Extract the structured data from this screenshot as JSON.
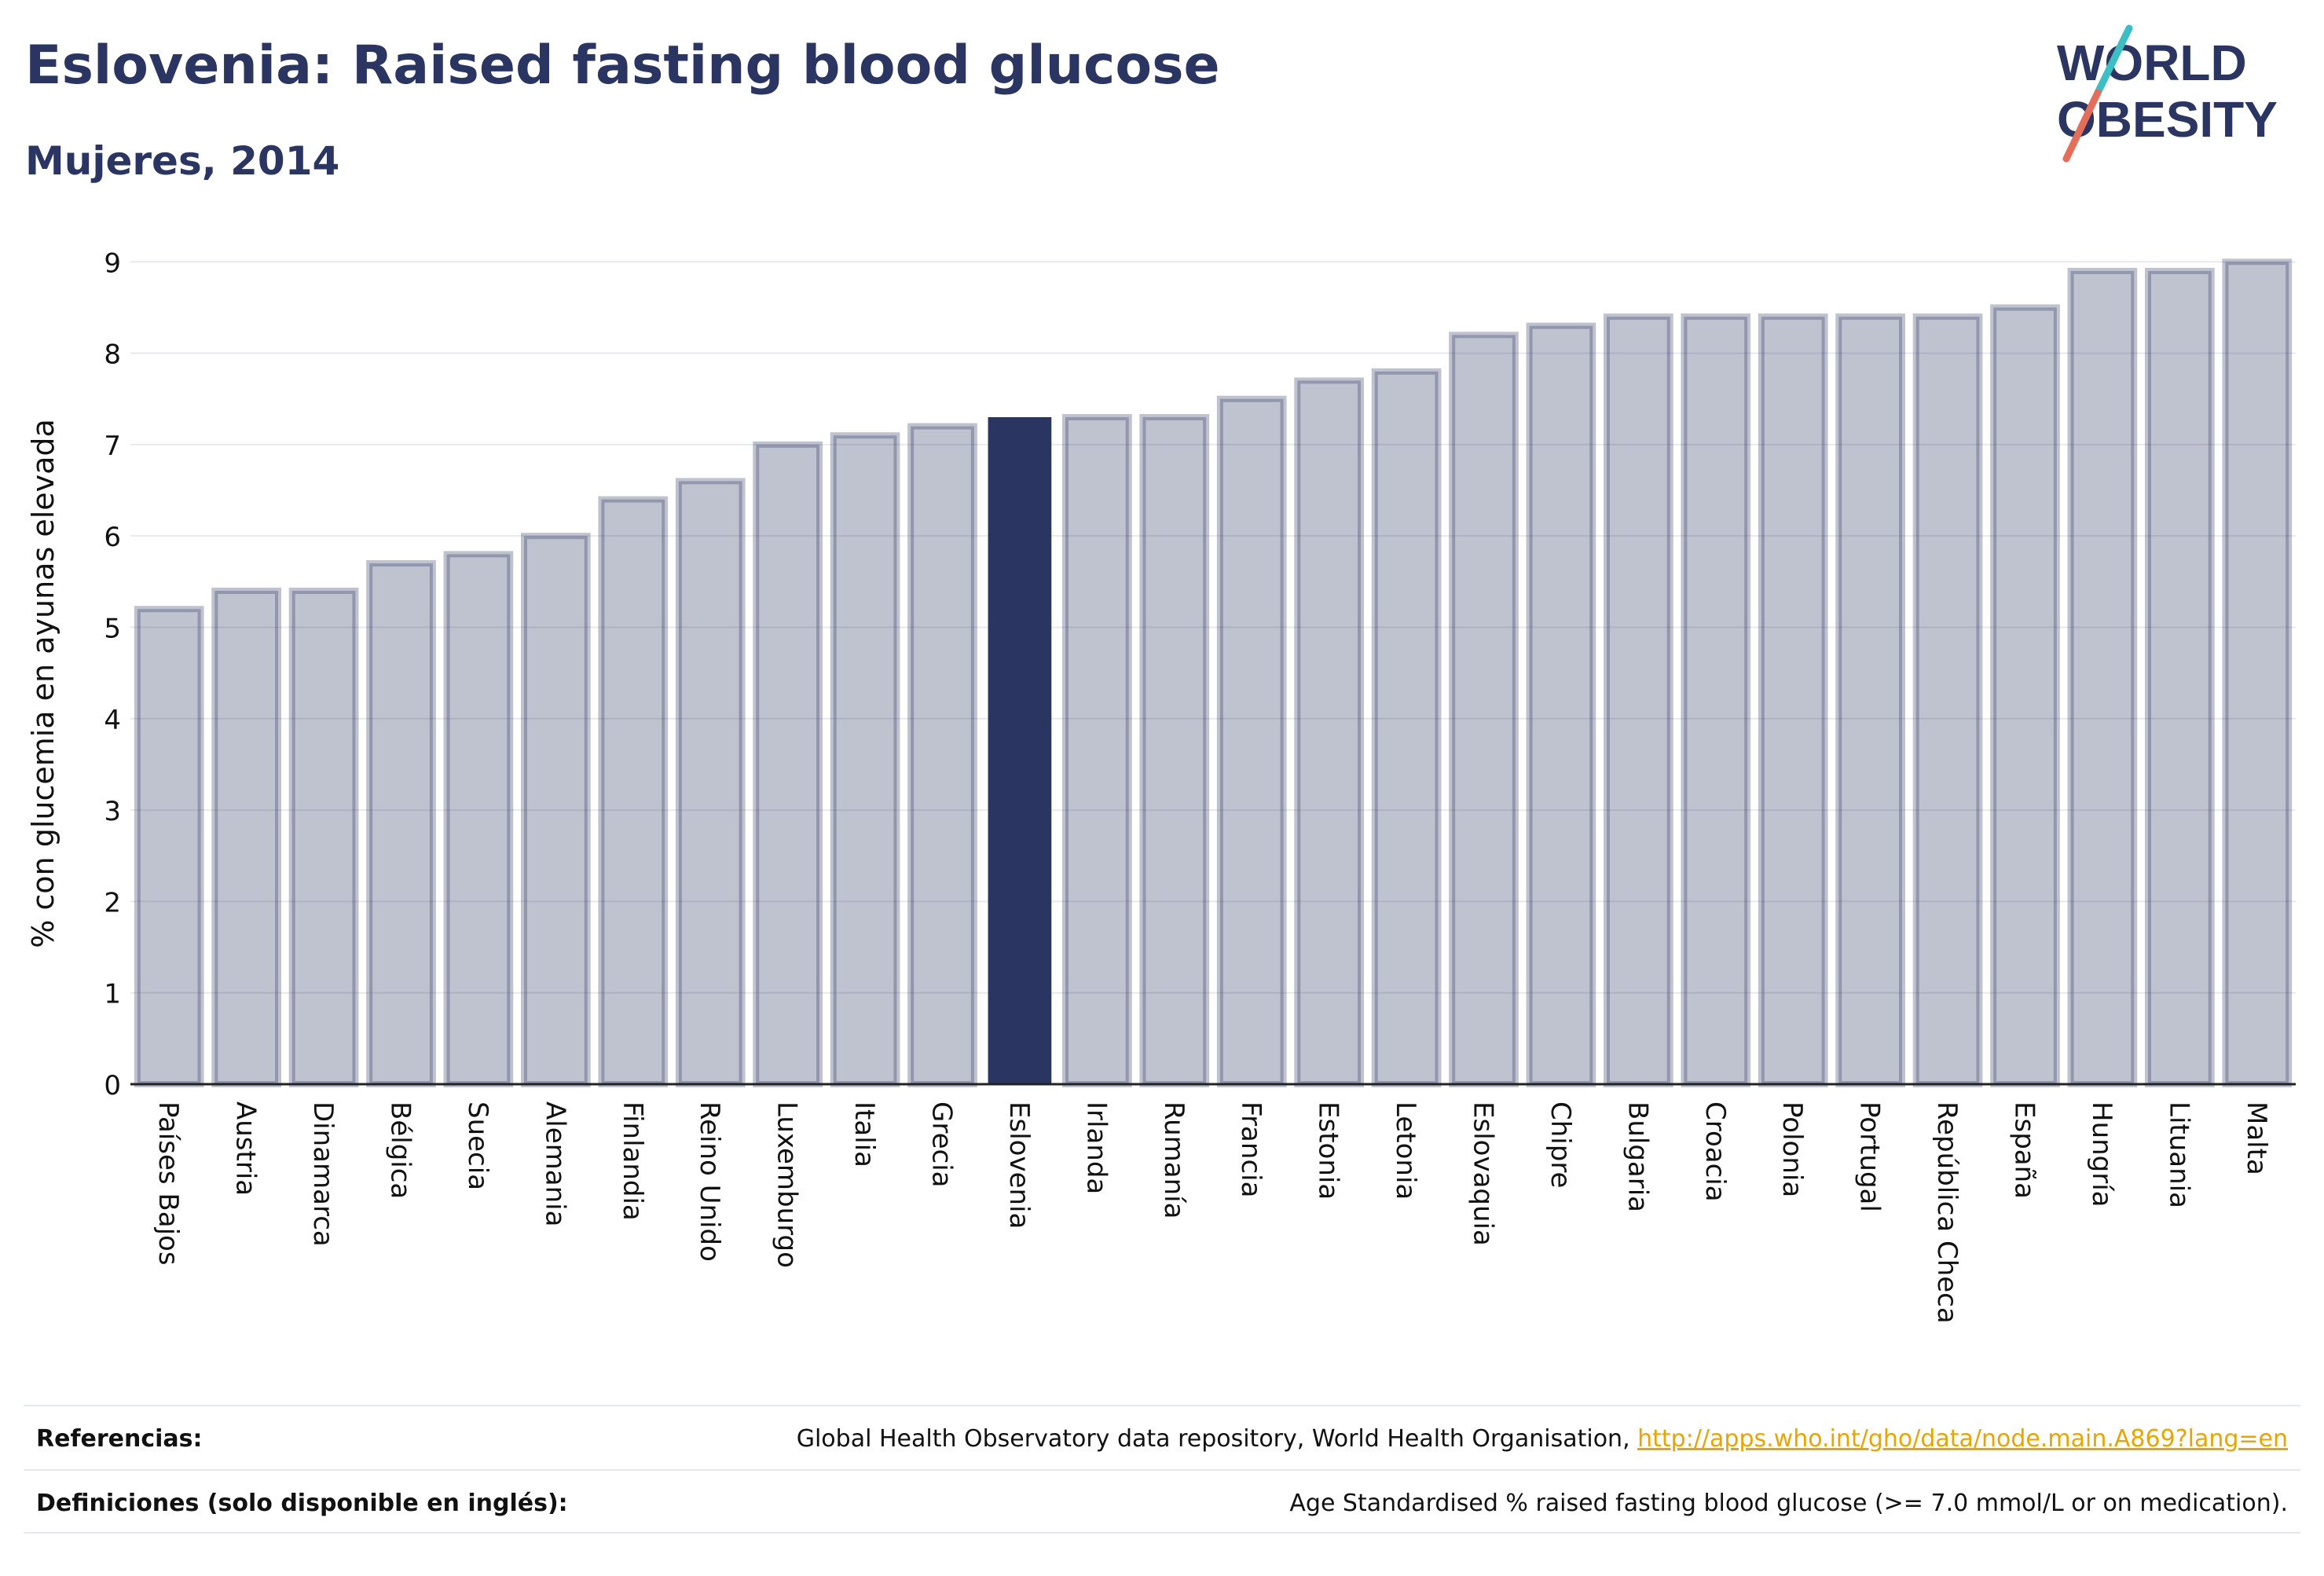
{
  "header": {
    "title": "Eslovenia: Raised fasting blood glucose",
    "subtitle": "Mujeres, 2014"
  },
  "logo": {
    "line1": "WORLD",
    "line2": "OBESITY",
    "text_color": "#2a3561",
    "slash_colors": [
      "#3bbfc4",
      "#e36f5a"
    ]
  },
  "chart_data": {
    "type": "bar",
    "ylabel": "% con glucemia en ayunas elevada",
    "ylim": [
      0,
      9.2
    ],
    "yticks": [
      0,
      1,
      2,
      3,
      4,
      5,
      6,
      7,
      8,
      9
    ],
    "grid": true,
    "highlight": "Eslovenia",
    "colors": {
      "bar": "#2a3561",
      "highlight": "#2a3561",
      "grid": "#e8e9ee"
    },
    "categories": [
      "Países Bajos",
      "Austria",
      "Dinamarca",
      "Bélgica",
      "Suecia",
      "Alemania",
      "Finlandia",
      "Reino Unido",
      "Luxemburgo",
      "Italia",
      "Grecia",
      "Eslovenia",
      "Irlanda",
      "Rumanía",
      "Francia",
      "Estonia",
      "Letonia",
      "Eslovaquia",
      "Chipre",
      "Bulgaria",
      "Croacia",
      "Polonia",
      "Portugal",
      "República Checa",
      "España",
      "Hungría",
      "Lituania",
      "Malta"
    ],
    "values": [
      5.2,
      5.4,
      5.4,
      5.7,
      5.8,
      6.0,
      6.4,
      6.6,
      7.0,
      7.1,
      7.2,
      7.3,
      7.3,
      7.3,
      7.5,
      7.7,
      7.8,
      8.2,
      8.3,
      8.4,
      8.4,
      8.4,
      8.4,
      8.4,
      8.5,
      8.9,
      8.9,
      9.0
    ]
  },
  "footer": {
    "references_label": "Referencias:",
    "references_text": "Global Health Observatory data repository, World Health Organisation, ",
    "references_link": "http://apps.who.int/gho/data/node.main.A869?lang=en",
    "definitions_label": "Definiciones (solo disponible en inglés):",
    "definitions_text": "Age Standardised % raised fasting blood glucose (>= 7.0 mmol/L or on medication)."
  }
}
